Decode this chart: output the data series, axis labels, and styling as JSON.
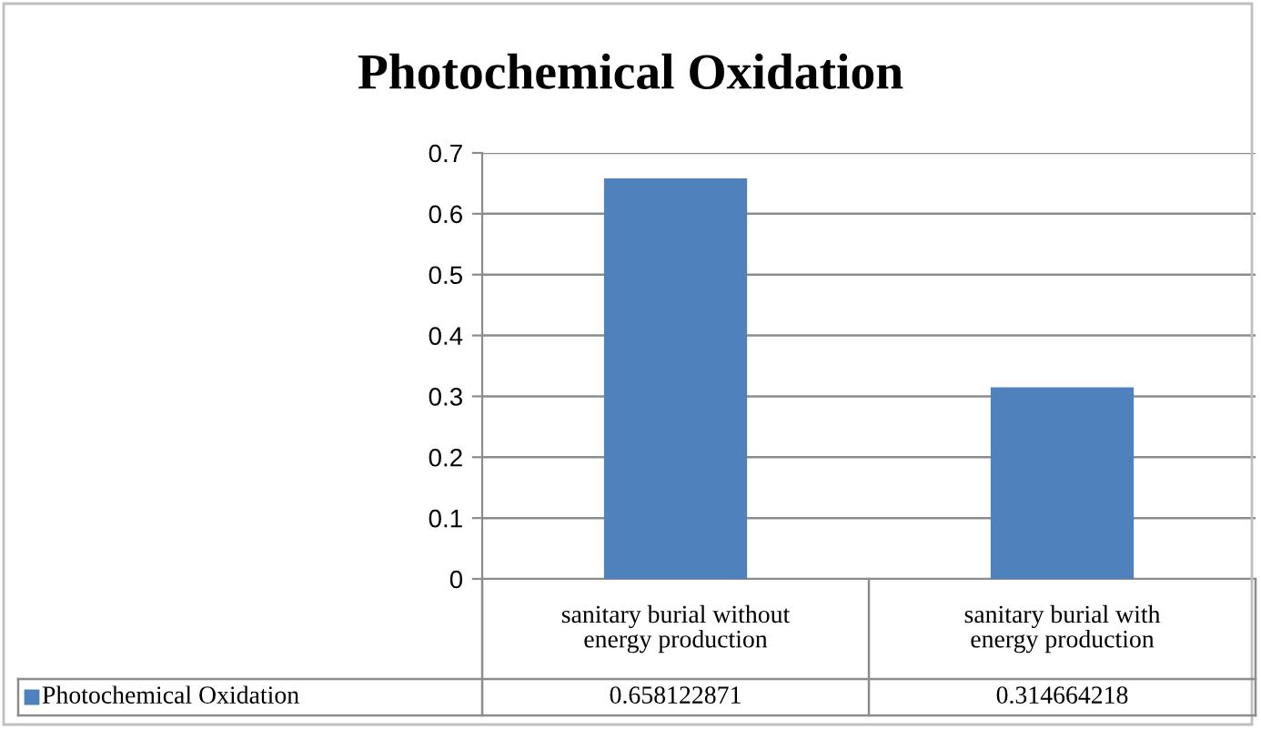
{
  "chart_data": {
    "type": "bar",
    "title": "Photochemical Oxidation",
    "categories": [
      "sanitary burial without energy production",
      "sanitary burial with energy production"
    ],
    "series": [
      {
        "name": "Photochemical Oxidation",
        "color": "#4f81bd",
        "values": [
          0.658122871,
          0.314664218
        ]
      }
    ],
    "ylim": [
      0,
      0.7
    ],
    "yticks": [
      0,
      0.1,
      0.2,
      0.3,
      0.4,
      0.5,
      0.6,
      0.7
    ],
    "grid": "y",
    "legend": "bottom left",
    "data_labels": true
  }
}
